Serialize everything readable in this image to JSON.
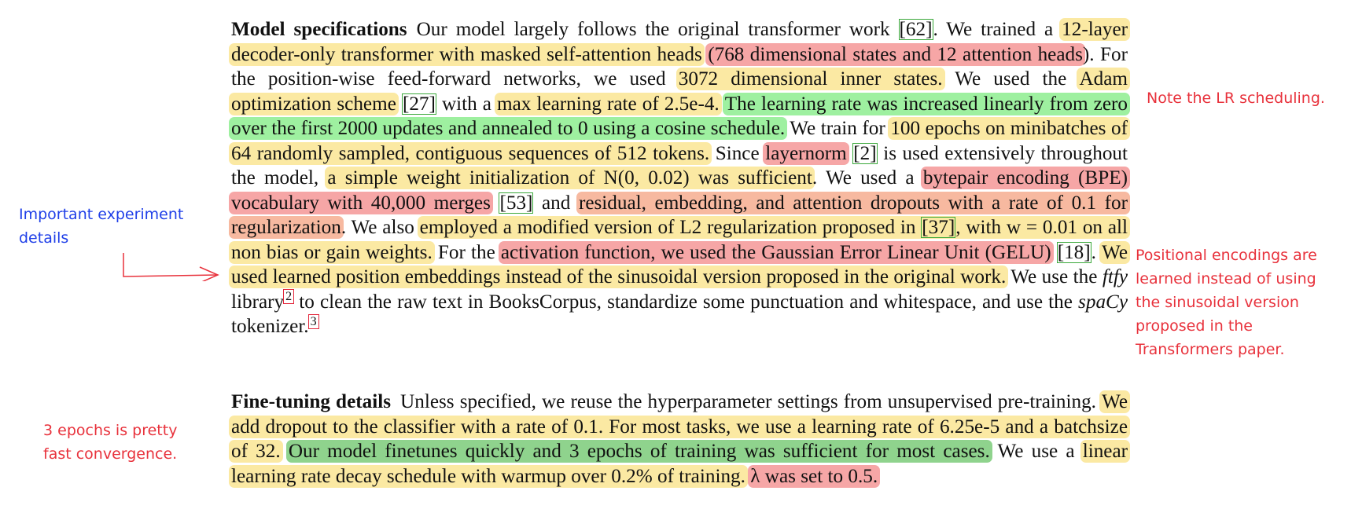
{
  "section1": {
    "heading": "Model specifications",
    "t1": "Our model largely follows the original transformer work",
    "c62": "[62]",
    "t2": ". We trained a",
    "h_layers": "12-layer decoder-only transformer with masked self-attention heads",
    "t3": " ",
    "h_dims": "(768 dimensional states and 12 attention heads",
    "t4": "). For the position-wise feed-forward networks, we used",
    "h_ff": "3072 dimensional inner states.",
    "t5": " We used the",
    "h_adam": "Adam optimization scheme",
    "c27": "[27]",
    "t6": " with a",
    "h_lr": "max learning rate of 2.5e-4.",
    "h_sched": "The learning rate was increased linearly from zero over the first 2000 updates and annealed to 0 using a cosine schedule.",
    "t7": " We train for",
    "h_epochs": "100 epochs on minibatches of 64 randomly sampled, contiguous sequences of 512 tokens.",
    "t8": " Since",
    "h_layernorm": "layernorm",
    "c2": "[2]",
    "t9": " is used extensively throughout the model,",
    "h_init": "a simple weight initialization of N(0, 0.02) was sufficient",
    "t10": ". We used a",
    "h_bpe": "bytepair encoding (BPE) vocabulary with 40,000 merges",
    "c53": "[53]",
    "t11": " and",
    "h_dropout": "residual, embedding, and attention dropouts with a rate of 0.1 for regularization",
    "t12": ". We also",
    "h_l2a": "employed a modified version of L2 regularization proposed in",
    "c37": "[37]",
    "h_l2b": ", with w = 0.01 on all non bias or gain weights.",
    "t13": " For the",
    "h_gelu": "activation function, we used the Gaussian Error Linear Unit (GELU)",
    "c18": "[18]",
    "t14": ".",
    "h_pos": "We used learned position embeddings instead of the sinusoidal version proposed in the original work.",
    "t15": " We use the",
    "ftfy": "ftfy",
    "t16": " library",
    "fn2": "2",
    "t17": " to clean the raw text in BooksCorpus, standardize some punctuation and whitespace, and use the",
    "spacy": "spaCy",
    "t18": " tokenizer.",
    "fn3": "3"
  },
  "section2": {
    "heading": "Fine-tuning details",
    "t1": "Unless specified, we reuse the hyperparameter settings from unsupervised pre-training.",
    "h_cls": "We add dropout to the classifier with a rate of 0.1. For most tasks, we use a learning rate of 6.25e-5 and a batchsize of 32.",
    "t2": " ",
    "h_quick": "Our model finetunes quickly and 3 epochs of training was sufficient for most cases.",
    "t3": " We use a",
    "h_decay": "linear learning rate decay schedule with warmup over 0.2% of training.",
    "t4": " ",
    "h_lambda": "λ was set to 0.5."
  },
  "annotations": {
    "lr": "Note the LR scheduling.",
    "exp": "Important experiment\ndetails",
    "pos": "Positional encodings are\nlearned instead of using\nthe sinusoidal version\nproposed in the\nTransformers paper.",
    "epochs": "3 epochs is pretty\nfast convergence."
  },
  "colors": {
    "highlight_yellow": "#fbe9a3",
    "highlight_red": "#f6a6a6",
    "highlight_orange": "#f7b9a0",
    "highlight_green": "#9ef0a0",
    "highlight_dark_green": "#8fd38d",
    "annotation_red": "#e8323c",
    "annotation_blue": "#1f3fe8"
  }
}
